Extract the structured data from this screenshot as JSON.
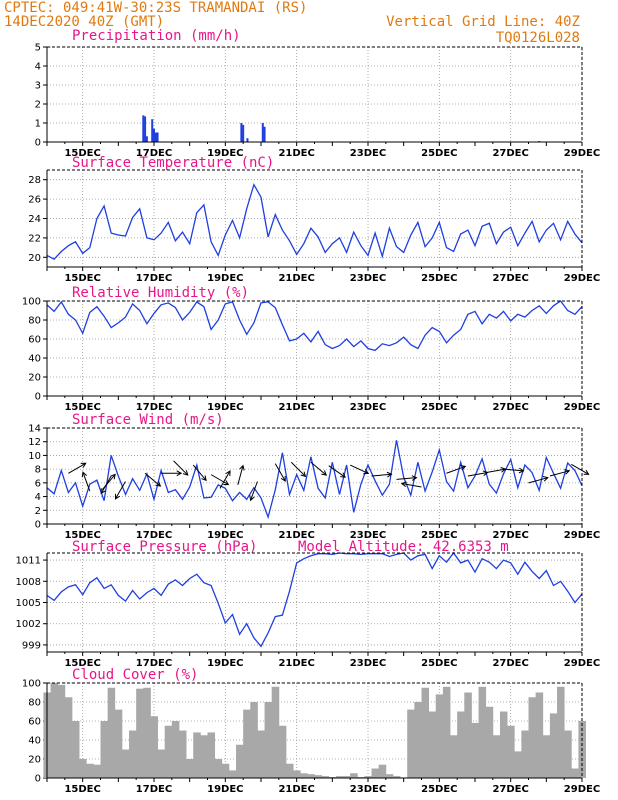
{
  "header": {
    "line1": "CPTEC:   049:41W-30:23S   TRAMANDAI (RS)",
    "line2": "14DEC2020 40Z (GMT)",
    "vgrid": "Vertical Grid Line: 40Z",
    "code": "TQ0126L028",
    "model_altitude": "Model Altitude: 42.6353 m"
  },
  "x_axis": {
    "range_days": [
      14.0,
      29.0
    ],
    "tick_days": [
      15,
      17,
      19,
      21,
      23,
      25,
      27,
      29
    ],
    "tick_labels": [
      "15DEC",
      "17DEC",
      "19DEC",
      "21DEC",
      "23DEC",
      "25DEC",
      "27DEC",
      "29DEC"
    ]
  },
  "colors": {
    "line": "#1f3fe0",
    "cloud": "#a8a8a8",
    "wind_arrow": "#000000",
    "title": "#e8168a",
    "header": "#e07a10"
  },
  "chart_data": [
    {
      "type": "bar",
      "title": "Precipitation (mm/h)",
      "ylim": [
        0,
        5
      ],
      "yticks": [
        0,
        1,
        2,
        3,
        4,
        5
      ],
      "x_day": [
        16.7,
        16.75,
        16.8,
        16.95,
        17.0,
        17.03,
        17.06,
        17.1,
        19.45,
        19.5,
        19.62,
        20.05,
        20.1,
        27.8
      ],
      "values": [
        1.4,
        1.35,
        0.3,
        1.2,
        0.7,
        0.5,
        0.5,
        0.5,
        1.0,
        0.9,
        0.2,
        1.0,
        0.8,
        0.05
      ]
    },
    {
      "type": "line",
      "title": "Surface Temperature (nC)",
      "ylim": [
        19,
        29
      ],
      "yticks": [
        20,
        22,
        24,
        26,
        28
      ],
      "x_day": [
        14.0,
        14.2,
        14.4,
        14.6,
        14.8,
        15.0,
        15.2,
        15.4,
        15.6,
        15.8,
        16.0,
        16.2,
        16.4,
        16.6,
        16.8,
        17.0,
        17.2,
        17.4,
        17.6,
        17.8,
        18.0,
        18.2,
        18.4,
        18.6,
        18.8,
        19.0,
        19.2,
        19.4,
        19.6,
        19.8,
        20.0,
        20.2,
        20.4,
        20.6,
        20.8,
        21.0,
        21.2,
        21.4,
        21.6,
        21.8,
        22.0,
        22.2,
        22.4,
        22.6,
        22.8,
        23.0,
        23.2,
        23.4,
        23.6,
        23.8,
        24.0,
        24.2,
        24.4,
        24.6,
        24.8,
        25.0,
        25.2,
        25.4,
        25.6,
        25.8,
        26.0,
        26.2,
        26.4,
        26.6,
        26.8,
        27.0,
        27.2,
        27.4,
        27.6,
        27.8,
        28.0,
        28.2,
        28.4,
        28.6,
        28.8,
        29.0
      ],
      "values": [
        20.2,
        19.8,
        20.6,
        21.2,
        21.6,
        20.4,
        21.0,
        24.0,
        25.3,
        22.5,
        22.3,
        22.2,
        24.1,
        25.0,
        22.0,
        21.8,
        22.5,
        23.6,
        21.7,
        22.6,
        21.4,
        24.6,
        25.4,
        21.6,
        20.2,
        22.3,
        23.8,
        22.0,
        25.0,
        27.5,
        26.2,
        22.1,
        24.4,
        22.8,
        21.7,
        20.3,
        21.4,
        23.0,
        22.1,
        20.5,
        21.4,
        22.0,
        20.5,
        22.6,
        21.2,
        20.2,
        22.5,
        20.1,
        23.0,
        21.1,
        20.5,
        22.3,
        23.6,
        21.1,
        22.0,
        23.6,
        21.0,
        20.6,
        22.4,
        22.8,
        21.2,
        23.2,
        23.5,
        21.4,
        22.6,
        23.1,
        21.2,
        22.5,
        23.7,
        21.6,
        22.8,
        23.5,
        21.8,
        23.7,
        22.4,
        21.5
      ]
    },
    {
      "type": "line",
      "title": "Relative Humidity (%)",
      "ylim": [
        0,
        100
      ],
      "yticks": [
        0,
        20,
        40,
        60,
        80,
        100
      ],
      "x_day": [
        14.0,
        14.2,
        14.4,
        14.6,
        14.8,
        15.0,
        15.2,
        15.4,
        15.6,
        15.8,
        16.0,
        16.2,
        16.4,
        16.6,
        16.8,
        17.0,
        17.2,
        17.4,
        17.6,
        17.8,
        18.0,
        18.2,
        18.4,
        18.6,
        18.8,
        19.0,
        19.2,
        19.4,
        19.6,
        19.8,
        20.0,
        20.2,
        20.4,
        20.6,
        20.8,
        21.0,
        21.2,
        21.4,
        21.6,
        21.8,
        22.0,
        22.2,
        22.4,
        22.6,
        22.8,
        23.0,
        23.2,
        23.4,
        23.6,
        23.8,
        24.0,
        24.2,
        24.4,
        24.6,
        24.8,
        25.0,
        25.2,
        25.4,
        25.6,
        25.8,
        26.0,
        26.2,
        26.4,
        26.6,
        26.8,
        27.0,
        27.2,
        27.4,
        27.6,
        27.8,
        28.0,
        28.2,
        28.4,
        28.6,
        28.8,
        29.0
      ],
      "values": [
        96,
        89,
        99,
        86,
        80,
        66,
        88,
        94,
        84,
        72,
        77,
        83,
        97,
        90,
        76,
        87,
        96,
        98,
        93,
        80,
        88,
        99,
        94,
        70,
        80,
        97,
        99,
        80,
        65,
        77,
        98,
        99,
        93,
        75,
        58,
        60,
        66,
        57,
        68,
        54,
        50,
        53,
        60,
        52,
        58,
        50,
        48,
        55,
        53,
        56,
        62,
        54,
        50,
        64,
        72,
        68,
        56,
        64,
        70,
        86,
        89,
        76,
        86,
        82,
        89,
        79,
        86,
        83,
        90,
        95,
        87,
        95,
        100,
        90,
        86,
        94
      ]
    },
    {
      "type": "line",
      "title": "Surface Wind (m/s)",
      "ylim": [
        0,
        14
      ],
      "yticks": [
        0,
        2,
        4,
        6,
        8,
        10,
        12,
        14
      ],
      "x_day": [
        14.0,
        14.2,
        14.4,
        14.6,
        14.8,
        15.0,
        15.2,
        15.4,
        15.6,
        15.8,
        16.0,
        16.2,
        16.4,
        16.6,
        16.8,
        17.0,
        17.2,
        17.4,
        17.6,
        17.8,
        18.0,
        18.2,
        18.4,
        18.6,
        18.8,
        19.0,
        19.2,
        19.4,
        19.6,
        19.8,
        20.0,
        20.2,
        20.4,
        20.6,
        20.8,
        21.0,
        21.2,
        21.4,
        21.6,
        21.8,
        22.0,
        22.2,
        22.4,
        22.6,
        22.8,
        23.0,
        23.2,
        23.4,
        23.6,
        23.8,
        24.0,
        24.2,
        24.4,
        24.6,
        24.8,
        25.0,
        25.2,
        25.4,
        25.6,
        25.8,
        26.0,
        26.2,
        26.4,
        26.6,
        26.8,
        27.0,
        27.2,
        27.4,
        27.6,
        27.8,
        28.0,
        28.2,
        28.4,
        28.6,
        28.8,
        29.0
      ],
      "values": [
        5.3,
        4.4,
        7.8,
        4.6,
        6.0,
        2.6,
        5.8,
        6.4,
        3.4,
        10.0,
        7.0,
        4.3,
        6.6,
        4.9,
        7.3,
        3.6,
        7.8,
        4.6,
        5.0,
        3.6,
        5.4,
        8.6,
        3.8,
        3.9,
        5.7,
        5.2,
        3.4,
        4.6,
        3.6,
        5.3,
        3.8,
        1.0,
        5.0,
        10.4,
        4.3,
        7.2,
        4.9,
        9.8,
        5.2,
        3.8,
        9.0,
        4.3,
        8.6,
        1.7,
        5.8,
        8.6,
        6.3,
        4.2,
        5.8,
        12.2,
        6.8,
        4.2,
        9.0,
        4.8,
        7.6,
        10.8,
        6.2,
        4.8,
        9.0,
        5.3,
        7.0,
        9.5,
        5.8,
        4.5,
        7.3,
        9.4,
        5.3,
        8.6,
        7.5,
        4.9,
        9.7,
        7.4,
        5.2,
        8.9,
        7.8,
        5.6
      ],
      "arrows": [
        {
          "day": 14.6,
          "speed": 7.4,
          "dir_deg": 60
        },
        {
          "day": 15.2,
          "speed": 4.8,
          "dir_deg": 340
        },
        {
          "day": 15.55,
          "speed": 5.0,
          "dir_deg": 40
        },
        {
          "day": 15.8,
          "speed": 7.0,
          "dir_deg": 210
        },
        {
          "day": 16.2,
          "speed": 6.2,
          "dir_deg": 210
        },
        {
          "day": 16.75,
          "speed": 7.4,
          "dir_deg": 130
        },
        {
          "day": 17.2,
          "speed": 7.4,
          "dir_deg": 90
        },
        {
          "day": 17.55,
          "speed": 9.2,
          "dir_deg": 135
        },
        {
          "day": 18.1,
          "speed": 8.6,
          "dir_deg": 140
        },
        {
          "day": 18.6,
          "speed": 7.2,
          "dir_deg": 120
        },
        {
          "day": 18.85,
          "speed": 5.2,
          "dir_deg": 30
        },
        {
          "day": 19.35,
          "speed": 5.7,
          "dir_deg": 15
        },
        {
          "day": 19.9,
          "speed": 6.2,
          "dir_deg": 200
        },
        {
          "day": 20.4,
          "speed": 8.8,
          "dir_deg": 150
        },
        {
          "day": 20.85,
          "speed": 9.0,
          "dir_deg": 135
        },
        {
          "day": 21.4,
          "speed": 9.0,
          "dir_deg": 130
        },
        {
          "day": 21.9,
          "speed": 8.5,
          "dir_deg": 125
        },
        {
          "day": 22.5,
          "speed": 8.6,
          "dir_deg": 115
        },
        {
          "day": 23.1,
          "speed": 7.0,
          "dir_deg": 85
        },
        {
          "day": 23.8,
          "speed": 6.5,
          "dir_deg": 85
        },
        {
          "day": 24.5,
          "speed": 5.4,
          "dir_deg": 280
        },
        {
          "day": 25.2,
          "speed": 7.4,
          "dir_deg": 70
        },
        {
          "day": 25.8,
          "speed": 7.0,
          "dir_deg": 80
        },
        {
          "day": 26.3,
          "speed": 7.5,
          "dir_deg": 80
        },
        {
          "day": 26.8,
          "speed": 8.0,
          "dir_deg": 95
        },
        {
          "day": 27.5,
          "speed": 6.0,
          "dir_deg": 75
        },
        {
          "day": 28.1,
          "speed": 7.0,
          "dir_deg": 75
        },
        {
          "day": 28.7,
          "speed": 8.7,
          "dir_deg": 120
        }
      ]
    },
    {
      "type": "line",
      "title": "Surface Pressure (hPa)",
      "ylim": [
        998,
        1012
      ],
      "yticks": [
        999,
        1002,
        1005,
        1008,
        1011
      ],
      "x_day": [
        14.0,
        14.2,
        14.4,
        14.6,
        14.8,
        15.0,
        15.2,
        15.4,
        15.6,
        15.8,
        16.0,
        16.2,
        16.4,
        16.6,
        16.8,
        17.0,
        17.2,
        17.4,
        17.6,
        17.8,
        18.0,
        18.2,
        18.4,
        18.6,
        18.8,
        19.0,
        19.2,
        19.4,
        19.6,
        19.8,
        20.0,
        20.2,
        20.4,
        20.6,
        20.8,
        21.0,
        21.2,
        21.4,
        21.6,
        21.8,
        22.0,
        22.2,
        22.4,
        22.6,
        22.8,
        23.0,
        23.2,
        23.4,
        23.6,
        23.8,
        24.0,
        24.2,
        24.4,
        24.6,
        24.8,
        25.0,
        25.2,
        25.4,
        25.6,
        25.8,
        26.0,
        26.2,
        26.4,
        26.6,
        26.8,
        27.0,
        27.2,
        27.4,
        27.6,
        27.8,
        28.0,
        28.2,
        28.4,
        28.6,
        28.8,
        29.0
      ],
      "values": [
        1006.0,
        1005.3,
        1006.5,
        1007.2,
        1007.5,
        1006.1,
        1007.8,
        1008.5,
        1007.0,
        1007.5,
        1006.0,
        1005.2,
        1006.7,
        1005.5,
        1006.4,
        1007.0,
        1006.0,
        1007.6,
        1008.2,
        1007.4,
        1008.4,
        1009.0,
        1007.8,
        1007.4,
        1004.9,
        1002.1,
        1003.3,
        1000.5,
        1002.0,
        1000.0,
        998.8,
        1000.7,
        1003.0,
        1003.2,
        1006.6,
        1010.6,
        1011.2,
        1011.6,
        1011.9,
        1011.9,
        1011.8,
        1012.0,
        1011.9,
        1011.9,
        1011.8,
        1011.9,
        1011.9,
        1011.9,
        1011.5,
        1011.8,
        1012.0,
        1011.0,
        1011.6,
        1011.8,
        1009.8,
        1011.6,
        1010.7,
        1012.0,
        1010.6,
        1011.0,
        1009.3,
        1011.2,
        1010.7,
        1009.8,
        1011.0,
        1010.6,
        1009.0,
        1010.7,
        1009.4,
        1008.4,
        1009.5,
        1007.4,
        1008.0,
        1006.6,
        1005.0,
        1006.2
      ]
    },
    {
      "type": "bar",
      "title": "Cloud Cover (%)",
      "ylim": [
        0,
        100
      ],
      "yticks": [
        0,
        20,
        40,
        60,
        80,
        100
      ],
      "x_day": [
        14.0,
        14.2,
        14.4,
        14.6,
        14.8,
        15.0,
        15.2,
        15.4,
        15.6,
        15.8,
        16.0,
        16.2,
        16.4,
        16.6,
        16.8,
        17.0,
        17.2,
        17.4,
        17.6,
        17.8,
        18.0,
        18.2,
        18.4,
        18.6,
        18.8,
        19.0,
        19.2,
        19.4,
        19.6,
        19.8,
        20.0,
        20.2,
        20.4,
        20.6,
        20.8,
        21.0,
        21.2,
        21.4,
        21.6,
        21.8,
        22.0,
        22.2,
        22.4,
        22.6,
        22.8,
        23.0,
        23.2,
        23.4,
        23.6,
        23.8,
        24.0,
        24.2,
        24.4,
        24.6,
        24.8,
        25.0,
        25.2,
        25.4,
        25.6,
        25.8,
        26.0,
        26.2,
        26.4,
        26.6,
        26.8,
        27.0,
        27.2,
        27.4,
        27.6,
        27.8,
        28.0,
        28.2,
        28.4,
        28.6,
        28.8,
        29.0
      ],
      "values": [
        90,
        100,
        98,
        85,
        60,
        20,
        15,
        14,
        60,
        95,
        72,
        30,
        50,
        94,
        95,
        65,
        30,
        55,
        60,
        50,
        20,
        48,
        45,
        48,
        20,
        15,
        8,
        35,
        72,
        80,
        50,
        80,
        96,
        55,
        15,
        8,
        5,
        4,
        3,
        2,
        1,
        2,
        2,
        5,
        1,
        2,
        10,
        14,
        4,
        2,
        0,
        72,
        80,
        95,
        70,
        88,
        96,
        45,
        70,
        90,
        58,
        96,
        75,
        45,
        70,
        55,
        28,
        50,
        85,
        90,
        45,
        68,
        96,
        50,
        10,
        60
      ]
    }
  ]
}
